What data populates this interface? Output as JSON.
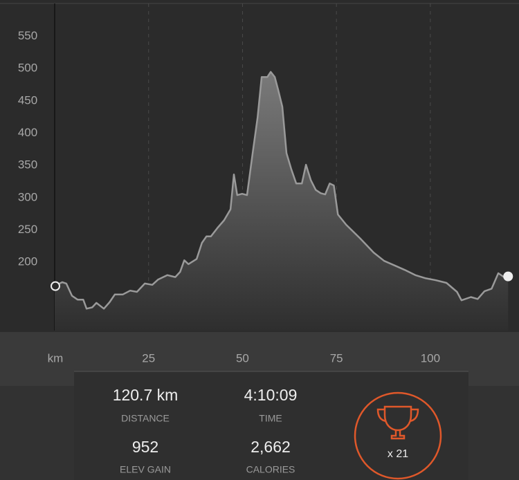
{
  "chart_data": {
    "type": "area",
    "x_label": "km",
    "color": "#9a9a9a",
    "grid": true,
    "x": [
      0.0,
      2.0,
      3.1,
      4.6,
      6.1,
      7.6,
      8.5,
      10.0,
      11.1,
      13.1,
      14.6,
      16.0,
      18.1,
      20.1,
      21.9,
      24.0,
      26.0,
      27.5,
      30.0,
      32.1,
      33.4,
      34.5,
      35.6,
      37.8,
      39.2,
      40.4,
      41.6,
      43.3,
      45.1,
      46.8,
      47.7,
      48.6,
      49.9,
      51.2,
      52.7,
      54.0,
      55.1,
      56.6,
      57.5,
      58.6,
      59.5,
      60.6,
      61.7,
      63.0,
      64.3,
      65.8,
      66.9,
      68.2,
      69.5,
      70.8,
      72.0,
      73.2,
      74.3,
      75.4,
      77.6,
      81.3,
      84.9,
      87.7,
      90.5,
      93.2,
      96.0,
      98.8,
      101.5,
      104.3,
      107.1,
      108.3,
      110.8,
      112.6,
      114.4,
      116.3,
      118.1,
      119.6,
      120.7
    ],
    "values": [
      163,
      169,
      167,
      148,
      142,
      142,
      128,
      130,
      137,
      128,
      138,
      150,
      150,
      156,
      154,
      167,
      165,
      173,
      180,
      177,
      185,
      203,
      197,
      205,
      230,
      240,
      240,
      253,
      265,
      282,
      336,
      304,
      306,
      304,
      369,
      424,
      487,
      487,
      495,
      487,
      467,
      441,
      369,
      344,
      322,
      322,
      351,
      327,
      312,
      307,
      305,
      322,
      319,
      274,
      258,
      237,
      215,
      202,
      195,
      188,
      180,
      175,
      172,
      168,
      154,
      141,
      146,
      143,
      155,
      159,
      183,
      177,
      178
    ],
    "xlim": [
      0,
      123.6
    ],
    "xticks": [
      25,
      50,
      75,
      100
    ],
    "ylim": [
      94,
      601
    ],
    "yticks": [
      200,
      250,
      300,
      350,
      400,
      450,
      500,
      550
    ]
  },
  "stats": [
    {
      "value": "120.7 km",
      "label": "DISTANCE"
    },
    {
      "value": "4:10:09",
      "label": "TIME"
    },
    {
      "value": "952",
      "label": "ELEV GAIN"
    },
    {
      "value": "2,662",
      "label": "CALORIES"
    }
  ],
  "achievements": "x 21"
}
